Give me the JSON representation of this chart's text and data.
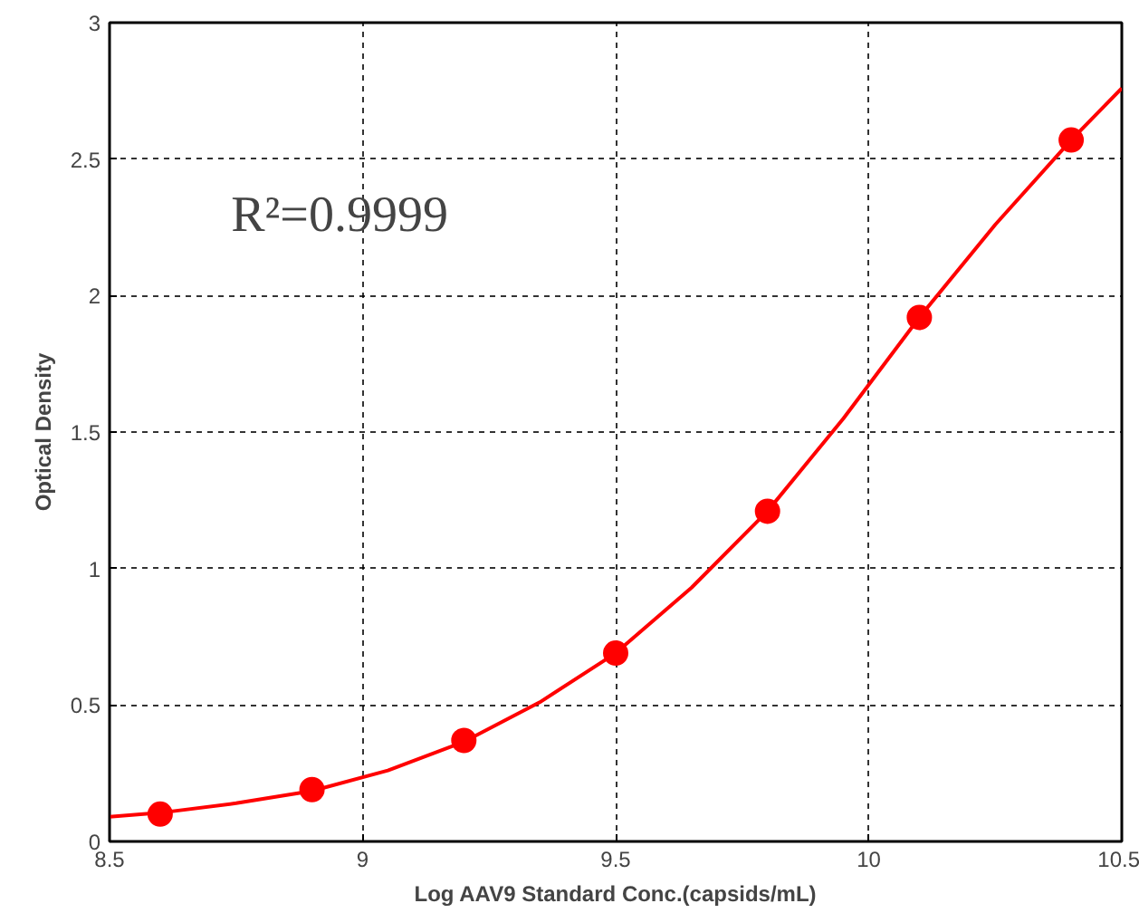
{
  "chart_data": {
    "type": "scatter",
    "xlabel": "Log AAV9 Standard Conc.(capsids/mL)",
    "ylabel": "Optical Density",
    "annotations": [
      "R²=0.9999"
    ],
    "xlim": [
      8.5,
      10.5
    ],
    "xticks": [
      8.5,
      9,
      9.5,
      10,
      10.5
    ],
    "ylim": [
      0,
      3
    ],
    "yticks": [
      0,
      0.5,
      1,
      1.5,
      2,
      2.5,
      3
    ],
    "grid": true,
    "series": [
      {
        "marker": "circle",
        "color": "#ff0000",
        "x": [
          8.6,
          8.9,
          9.2,
          9.5,
          9.8,
          10.1,
          10.4
        ],
        "values": [
          0.1,
          0.19,
          0.37,
          0.69,
          1.21,
          1.92,
          2.57
        ]
      },
      {
        "type": "line",
        "color": "#ff0000",
        "x": [
          8.5,
          8.6,
          8.75,
          8.9,
          9.05,
          9.2,
          9.35,
          9.5,
          9.65,
          9.8,
          9.95,
          10.1,
          10.25,
          10.4,
          10.5
        ],
        "values": [
          0.09,
          0.105,
          0.14,
          0.185,
          0.26,
          0.365,
          0.51,
          0.69,
          0.93,
          1.21,
          1.55,
          1.92,
          2.26,
          2.57,
          2.76
        ]
      }
    ]
  }
}
